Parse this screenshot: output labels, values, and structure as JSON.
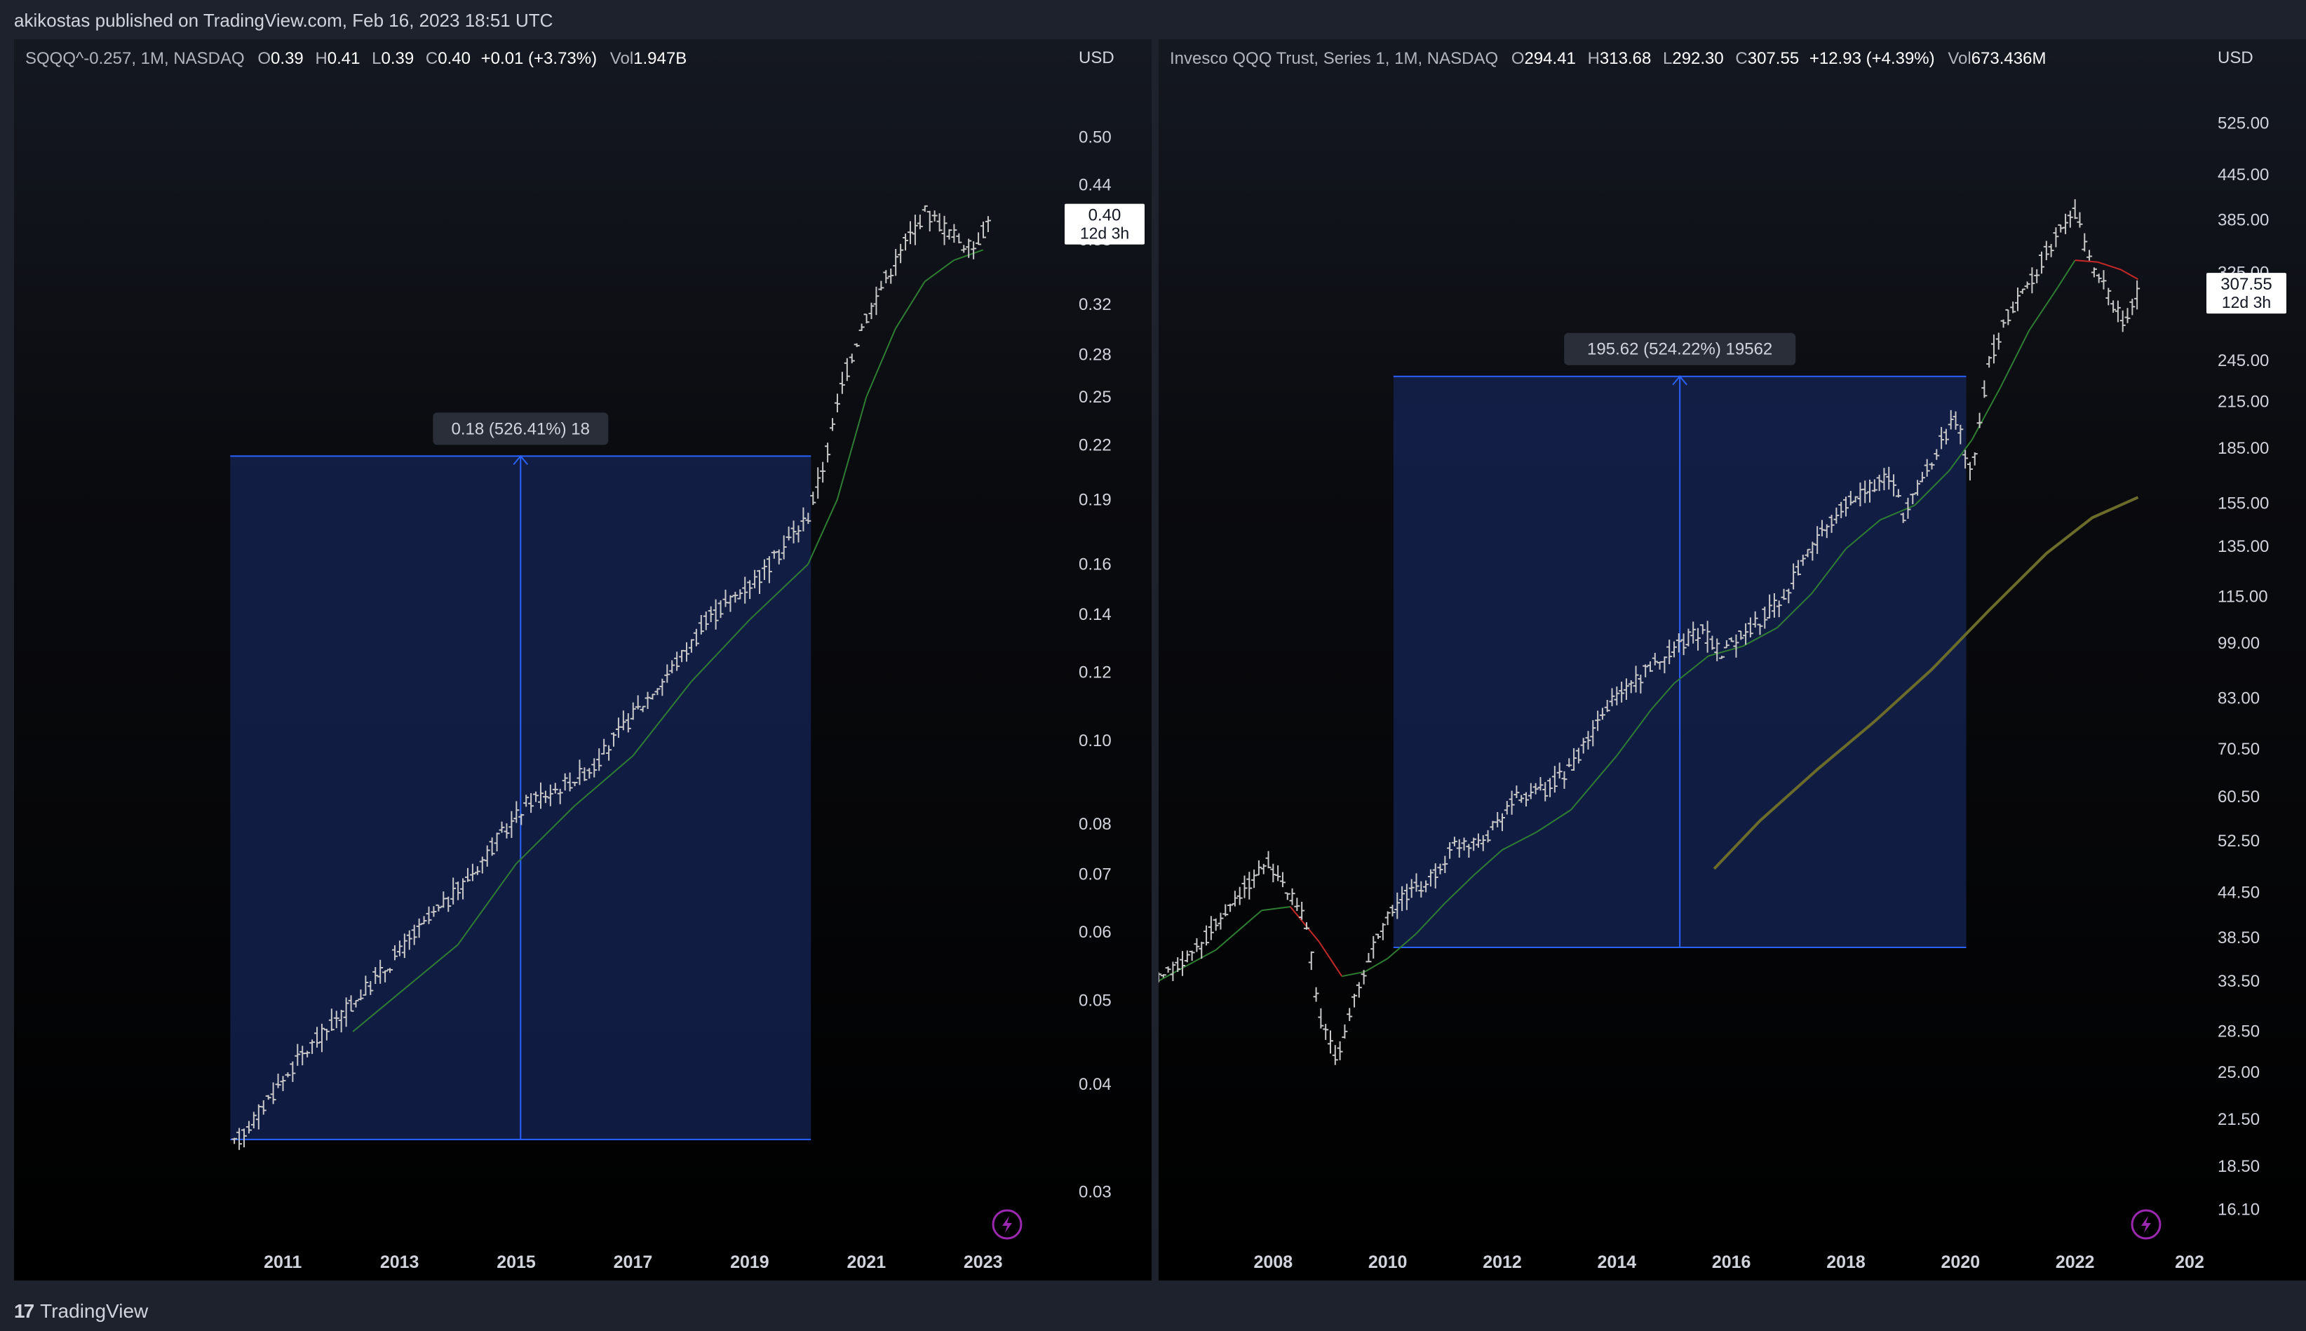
{
  "publish_line": "akikostas published on TradingView.com, Feb 16, 2023 18:51 UTC",
  "footer": {
    "logo_icon": "tradingview-logo-icon",
    "brand": "TradingView"
  },
  "colors": {
    "candle": "#c8c8c8",
    "ma_green": "#2e7d32",
    "ma_red": "#c62828",
    "ma_olive": "#6b6b2a",
    "measure_fill": "#162457",
    "measure_line": "#2962ff",
    "axis_text": "#d1d4dc"
  },
  "left_chart": {
    "legend": {
      "symbol": "SQQQ^-0.257, 1M, NASDAQ",
      "o_label": "O",
      "o": "0.39",
      "h_label": "H",
      "h": "0.41",
      "l_label": "L",
      "l": "0.39",
      "c_label": "C",
      "c": "0.40",
      "change": "+0.01 (+3.73%)",
      "vol_label": "Vol",
      "vol": "1.947B"
    },
    "price_tag": {
      "price": "0.40",
      "countdown": "12d 3h"
    },
    "measure_label": "0.18 (526.41%) 18",
    "lightning_icon": "lightning-icon"
  },
  "right_chart": {
    "legend": {
      "symbol": "Invesco QQQ Trust, Series 1, 1M, NASDAQ",
      "o_label": "O",
      "o": "294.41",
      "h_label": "H",
      "h": "313.68",
      "l_label": "L",
      "l": "292.30",
      "c_label": "C",
      "c": "307.55",
      "change": "+12.93 (+4.39%)",
      "vol_label": "Vol",
      "vol": "673.436M"
    },
    "price_tag": {
      "price": "307.55",
      "countdown": "12d 3h"
    },
    "measure_label": "195.62 (524.22%) 19562",
    "lightning_icon": "lightning-icon"
  },
  "chart_data": [
    {
      "type": "candlestick",
      "scale": "log",
      "currency": "USD",
      "y_ticks": [
        "0.50",
        "0.44",
        "0.38",
        "0.32",
        "0.28",
        "0.25",
        "0.22",
        "0.19",
        "0.16",
        "0.14",
        "0.12",
        "0.10",
        "0.08",
        "0.07",
        "0.06",
        "0.05",
        "0.04",
        "0.03"
      ],
      "x_ticks": [
        "2011",
        "2013",
        "2015",
        "2017",
        "2019",
        "2021",
        "2023"
      ],
      "x_range": [
        2010.0,
        2023.4
      ],
      "ylim": [
        0.027,
        0.58
      ],
      "price_path": [
        [
          2010.17,
          0.034
        ],
        [
          2010.7,
          0.038
        ],
        [
          2011.3,
          0.043
        ],
        [
          2012.0,
          0.048
        ],
        [
          2012.7,
          0.054
        ],
        [
          2013.3,
          0.06
        ],
        [
          2014.0,
          0.067
        ],
        [
          2014.7,
          0.077
        ],
        [
          2015.2,
          0.085
        ],
        [
          2015.7,
          0.088
        ],
        [
          2016.3,
          0.093
        ],
        [
          2017.0,
          0.107
        ],
        [
          2017.7,
          0.122
        ],
        [
          2018.3,
          0.138
        ],
        [
          2018.8,
          0.148
        ],
        [
          2019.3,
          0.158
        ],
        [
          2019.7,
          0.172
        ],
        [
          2020.0,
          0.182
        ],
        [
          2020.3,
          0.212
        ],
        [
          2020.6,
          0.26
        ],
        [
          2020.9,
          0.3
        ],
        [
          2021.3,
          0.34
        ],
        [
          2021.7,
          0.38
        ],
        [
          2022.0,
          0.41
        ],
        [
          2022.4,
          0.39
        ],
        [
          2022.8,
          0.37
        ],
        [
          2023.1,
          0.4
        ]
      ],
      "moving_average": [
        [
          2012.2,
          0.046
        ],
        [
          2013.0,
          0.051
        ],
        [
          2014.0,
          0.058
        ],
        [
          2015.0,
          0.072
        ],
        [
          2016.0,
          0.084
        ],
        [
          2017.0,
          0.096
        ],
        [
          2018.0,
          0.117
        ],
        [
          2019.0,
          0.138
        ],
        [
          2020.0,
          0.16
        ],
        [
          2020.5,
          0.19
        ],
        [
          2021.0,
          0.25
        ],
        [
          2021.5,
          0.3
        ],
        [
          2022.0,
          0.34
        ],
        [
          2022.5,
          0.36
        ],
        [
          2023.0,
          0.37
        ]
      ],
      "measure": {
        "x_start": 2010.1,
        "x_end": 2020.05,
        "y_start": 0.0345,
        "y_end": 0.2135
      },
      "last_price": 0.4
    },
    {
      "type": "candlestick",
      "scale": "log",
      "currency": "USD",
      "y_ticks": [
        "525.00",
        "445.00",
        "385.00",
        "325.00",
        "245.00",
        "215.00",
        "185.00",
        "155.00",
        "135.00",
        "115.00",
        "99.00",
        "83.00",
        "70.50",
        "60.50",
        "52.50",
        "44.50",
        "38.50",
        "33.50",
        "28.50",
        "25.00",
        "21.50",
        "18.50",
        "16.10"
      ],
      "x_ticks": [
        "2008",
        "2010",
        "2012",
        "2014",
        "2016",
        "2018",
        "2020",
        "2022",
        "202"
      ],
      "x_range": [
        2006.0,
        2024.0
      ],
      "ylim": [
        15.0,
        600
      ],
      "price_path": [
        [
          2006.0,
          33.5
        ],
        [
          2006.5,
          36
        ],
        [
          2007.0,
          40
        ],
        [
          2007.5,
          45
        ],
        [
          2007.9,
          49
        ],
        [
          2008.3,
          44
        ],
        [
          2008.6,
          40
        ],
        [
          2008.8,
          30
        ],
        [
          2009.1,
          26
        ],
        [
          2009.5,
          33
        ],
        [
          2009.9,
          40
        ],
        [
          2010.3,
          44
        ],
        [
          2010.7,
          46
        ],
        [
          2011.2,
          52
        ],
        [
          2011.7,
          53
        ],
        [
          2012.2,
          60
        ],
        [
          2012.8,
          62
        ],
        [
          2013.3,
          68
        ],
        [
          2013.9,
          82
        ],
        [
          2014.5,
          90
        ],
        [
          2015.0,
          98
        ],
        [
          2015.5,
          103
        ],
        [
          2015.8,
          96
        ],
        [
          2016.2,
          102
        ],
        [
          2016.8,
          112
        ],
        [
          2017.3,
          130
        ],
        [
          2017.9,
          152
        ],
        [
          2018.3,
          162
        ],
        [
          2018.8,
          168
        ],
        [
          2019.0,
          150
        ],
        [
          2019.5,
          178
        ],
        [
          2019.9,
          205
        ],
        [
          2020.2,
          170
        ],
        [
          2020.5,
          245
        ],
        [
          2020.9,
          290
        ],
        [
          2021.3,
          325
        ],
        [
          2021.8,
          380
        ],
        [
          2022.0,
          395
        ],
        [
          2022.3,
          330
        ],
        [
          2022.6,
          300
        ],
        [
          2022.9,
          275
        ],
        [
          2023.1,
          307
        ]
      ],
      "ma_short": [
        [
          2006.0,
          33.5
        ],
        [
          2007.0,
          37
        ],
        [
          2007.8,
          42
        ],
        [
          2008.3,
          42.5
        ],
        [
          2008.8,
          38
        ],
        [
          2009.2,
          34
        ],
        [
          2009.6,
          34.5
        ],
        [
          2010.0,
          36
        ],
        [
          2010.5,
          39
        ],
        [
          2011.0,
          43
        ],
        [
          2011.5,
          47
        ],
        [
          2012.0,
          51
        ],
        [
          2012.6,
          54
        ],
        [
          2013.2,
          58
        ],
        [
          2014.0,
          69
        ],
        [
          2014.6,
          80
        ],
        [
          2015.0,
          87
        ],
        [
          2015.6,
          95
        ],
        [
          2016.2,
          98
        ],
        [
          2016.8,
          104
        ],
        [
          2017.4,
          116
        ],
        [
          2018.0,
          134
        ],
        [
          2018.6,
          147
        ],
        [
          2019.2,
          154
        ],
        [
          2019.8,
          172
        ],
        [
          2020.2,
          190
        ],
        [
          2020.7,
          225
        ],
        [
          2021.2,
          270
        ],
        [
          2021.7,
          310
        ],
        [
          2022.0,
          338
        ],
        [
          2022.4,
          336
        ],
        [
          2022.8,
          328
        ],
        [
          2023.1,
          318
        ]
      ],
      "ma_long": [
        [
          2015.7,
          48
        ],
        [
          2016.5,
          56
        ],
        [
          2017.5,
          66
        ],
        [
          2018.5,
          77
        ],
        [
          2019.5,
          91
        ],
        [
          2020.5,
          110
        ],
        [
          2021.5,
          132
        ],
        [
          2022.3,
          148
        ],
        [
          2023.1,
          158
        ]
      ],
      "measure": {
        "x_start": 2010.1,
        "x_end": 2020.1,
        "y_start": 37.3,
        "y_end": 232.9
      },
      "last_price": 307.55
    }
  ]
}
